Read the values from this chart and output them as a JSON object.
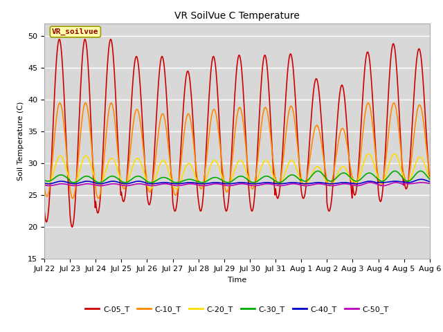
{
  "title": "VR SoilVue C Temperature",
  "ylabel": "Soil Temperature (C)",
  "xlabel": "Time",
  "ylim": [
    15,
    52
  ],
  "yticks": [
    15,
    20,
    25,
    30,
    35,
    40,
    45,
    50
  ],
  "x_tick_labels": [
    "Jul 22",
    "Jul 23",
    "Jul 24",
    "Jul 25",
    "Jul 26",
    "Jul 27",
    "Jul 28",
    "Jul 29",
    "Jul 30",
    "Jul 31",
    "Aug 1",
    "Aug 2",
    "Aug 3",
    "Aug 4",
    "Aug 5",
    "Aug 6"
  ],
  "bg_color": "#d8d8d8",
  "plot_bg_color": "#d8d8d8",
  "series": [
    {
      "label": "C-05_T",
      "color": "#cc0000",
      "lw": 1.2
    },
    {
      "label": "C-10_T",
      "color": "#ff8800",
      "lw": 1.2
    },
    {
      "label": "C-20_T",
      "color": "#ffdd00",
      "lw": 1.2
    },
    {
      "label": "C-30_T",
      "color": "#00aa00",
      "lw": 1.2
    },
    {
      "label": "C-40_T",
      "color": "#0000cc",
      "lw": 1.2
    },
    {
      "label": "C-50_T",
      "color": "#bb00bb",
      "lw": 1.2
    }
  ],
  "annotation_text": "VR_soilvue",
  "annotation_bg": "#ffffaa",
  "annotation_border": "#999900",
  "n_days": 15,
  "pts_per_day": 48,
  "day_peaks_05": [
    49.5,
    49.5,
    49.5,
    46.8,
    46.8,
    44.5,
    46.8,
    47.0,
    47.0,
    47.2,
    43.3,
    42.3,
    47.5,
    48.8,
    48.0
  ],
  "day_mins_05": [
    20.8,
    20.0,
    22.2,
    24.0,
    23.5,
    22.5,
    22.5,
    22.5,
    22.5,
    24.5,
    24.5,
    22.5,
    25.0,
    24.0,
    26.0
  ],
  "day_peaks_10": [
    39.5,
    39.5,
    39.5,
    38.5,
    37.8,
    37.8,
    38.5,
    38.8,
    38.8,
    39.0,
    36.0,
    35.5,
    39.5,
    39.5,
    39.2
  ],
  "day_mins_10": [
    24.8,
    24.5,
    24.5,
    26.0,
    25.5,
    25.0,
    26.0,
    25.5,
    26.0,
    26.5,
    26.5,
    26.5,
    26.5,
    26.5,
    27.0
  ],
  "day_peaks_20": [
    31.2,
    31.2,
    30.8,
    30.8,
    30.5,
    30.0,
    30.5,
    30.5,
    30.5,
    30.5,
    29.5,
    29.5,
    31.5,
    31.5,
    31.0
  ],
  "day_mins_20": [
    26.5,
    26.5,
    26.5,
    26.5,
    26.0,
    26.0,
    26.5,
    26.5,
    26.5,
    26.5,
    26.5,
    26.5,
    27.0,
    27.0,
    27.0
  ],
  "day_peaks_30": [
    28.2,
    28.0,
    28.0,
    28.0,
    27.8,
    27.5,
    27.8,
    28.0,
    28.0,
    28.2,
    28.8,
    28.5,
    28.5,
    28.8,
    28.8
  ],
  "day_mins_30": [
    27.2,
    27.0,
    27.0,
    27.0,
    27.0,
    27.0,
    27.0,
    27.0,
    27.0,
    27.0,
    27.2,
    27.2,
    27.2,
    27.2,
    27.2
  ],
  "day_peaks_40": [
    27.2,
    27.2,
    27.2,
    27.2,
    27.0,
    27.0,
    27.0,
    27.0,
    27.0,
    27.0,
    27.0,
    27.0,
    27.2,
    27.2,
    27.5
  ],
  "day_mins_40": [
    26.8,
    26.8,
    26.8,
    26.8,
    26.8,
    26.8,
    26.8,
    26.8,
    26.8,
    26.8,
    26.8,
    26.8,
    26.8,
    27.0,
    27.0
  ],
  "day_peaks_50": [
    26.8,
    26.8,
    26.8,
    26.8,
    26.8,
    26.8,
    26.8,
    26.8,
    26.8,
    26.8,
    26.8,
    26.8,
    27.0,
    27.0,
    27.0
  ],
  "day_mins_50": [
    26.5,
    26.5,
    26.5,
    26.5,
    26.5,
    26.5,
    26.5,
    26.5,
    26.5,
    26.5,
    26.5,
    26.5,
    26.5,
    26.5,
    26.8
  ],
  "title_fontsize": 10,
  "axis_label_fontsize": 8,
  "tick_fontsize": 8
}
